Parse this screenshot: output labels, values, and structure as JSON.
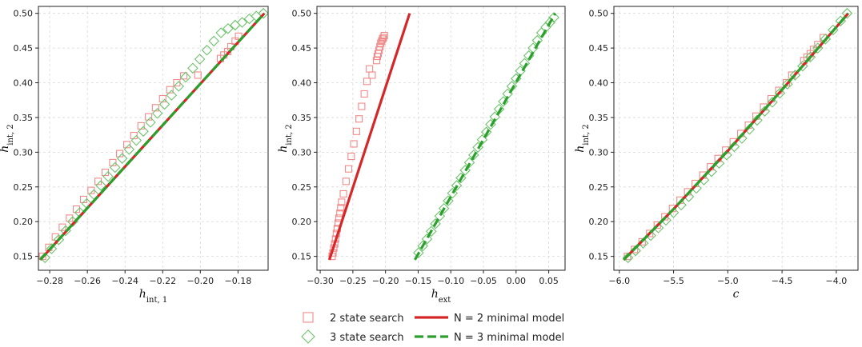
{
  "colors": {
    "red": "#d62728",
    "green": "#2ca02c",
    "grid": "#d9d9d9",
    "marker_red": "#f08a8a",
    "marker_green": "#6cc36c"
  },
  "legend": {
    "items": [
      {
        "label": "2 state search",
        "kind": "square-marker",
        "color": "#f08a8a"
      },
      {
        "label": "3 state search",
        "kind": "diamond-marker",
        "color": "#6cc36c"
      },
      {
        "label": "N = 2 minimal model",
        "kind": "solid-line",
        "color": "#d62728"
      },
      {
        "label": "N = 3 minimal model",
        "kind": "dashed-line",
        "color": "#2ca02c"
      }
    ]
  },
  "chart_data": [
    {
      "type": "scatter",
      "xlabel": "h_int,1",
      "xlabel_main": "h",
      "xlabel_sub": "int, 1",
      "ylabel": "h_int,2",
      "ylabel_main": "h",
      "ylabel_sub": "int, 2",
      "xlim": [
        -0.286,
        -0.164
      ],
      "ylim": [
        0.13,
        0.51
      ],
      "xticks": [
        -0.28,
        -0.26,
        -0.24,
        -0.22,
        -0.2,
        -0.18
      ],
      "xtick_labels": [
        "−0.28",
        "−0.26",
        "−0.24",
        "−0.22",
        "−0.20",
        "−0.18"
      ],
      "yticks": [
        0.15,
        0.2,
        0.25,
        0.3,
        0.35,
        0.4,
        0.45,
        0.5
      ],
      "ytick_labels": [
        "0.15",
        "0.20",
        "0.25",
        "0.30",
        "0.35",
        "0.40",
        "0.45",
        "0.50"
      ],
      "grid": true,
      "series": [
        {
          "name": "2 state search",
          "kind": "scatter",
          "marker": "square",
          "x": [
            -0.2838,
            -0.2805,
            -0.277,
            -0.2733,
            -0.2695,
            -0.2658,
            -0.262,
            -0.258,
            -0.2543,
            -0.2505,
            -0.2465,
            -0.2428,
            -0.239,
            -0.2353,
            -0.2315,
            -0.2275,
            -0.2238,
            -0.22,
            -0.2162,
            -0.2125,
            -0.2088,
            -0.2013,
            -0.1893,
            -0.1875,
            -0.1855,
            -0.1838,
            -0.1815,
            -0.1797
          ],
          "y": [
            0.15,
            0.163,
            0.178,
            0.192,
            0.205,
            0.218,
            0.232,
            0.245,
            0.258,
            0.271,
            0.285,
            0.298,
            0.311,
            0.324,
            0.338,
            0.351,
            0.364,
            0.377,
            0.39,
            0.4,
            0.41,
            0.411,
            0.435,
            0.44,
            0.445,
            0.452,
            0.46,
            0.467
          ]
        },
        {
          "name": "3 state search",
          "kind": "scatter",
          "marker": "diamond",
          "x": [
            -0.2825,
            -0.279,
            -0.2752,
            -0.2715,
            -0.2678,
            -0.264,
            -0.2603,
            -0.2565,
            -0.2528,
            -0.249,
            -0.2453,
            -0.2415,
            -0.2378,
            -0.234,
            -0.2303,
            -0.2265,
            -0.2228,
            -0.219,
            -0.2153,
            -0.2115,
            -0.2078,
            -0.204,
            -0.2003,
            -0.1965,
            -0.1928,
            -0.189,
            -0.1853,
            -0.1815,
            -0.1778,
            -0.174,
            -0.1703,
            -0.1665
          ],
          "y": [
            0.148,
            0.161,
            0.174,
            0.187,
            0.2,
            0.213,
            0.226,
            0.239,
            0.252,
            0.265,
            0.278,
            0.291,
            0.304,
            0.317,
            0.33,
            0.343,
            0.356,
            0.369,
            0.382,
            0.395,
            0.408,
            0.421,
            0.434,
            0.447,
            0.46,
            0.472,
            0.478,
            0.483,
            0.487,
            0.492,
            0.496,
            0.5
          ]
        },
        {
          "name": "N = 2 minimal model",
          "kind": "line",
          "style": "solid",
          "x": [
            -0.285,
            -0.166
          ],
          "y": [
            0.145,
            0.5
          ]
        },
        {
          "name": "N = 3 minimal model",
          "kind": "line",
          "style": "dashed",
          "x": [
            -0.285,
            -0.166
          ],
          "y": [
            0.145,
            0.5
          ]
        }
      ]
    },
    {
      "type": "scatter",
      "xlabel": "h_ext",
      "xlabel_main": "h",
      "xlabel_sub": "ext",
      "ylabel": "h_int,2",
      "ylabel_main": "h",
      "ylabel_sub": "int, 2",
      "xlim": [
        -0.305,
        0.075
      ],
      "ylim": [
        0.13,
        0.51
      ],
      "xticks": [
        -0.3,
        -0.25,
        -0.2,
        -0.15,
        -0.1,
        -0.05,
        0.0,
        0.05
      ],
      "xtick_labels": [
        "−0.30",
        "−0.25",
        "−0.20",
        "−0.15",
        "−0.10",
        "−0.05",
        "0.00",
        "0.05"
      ],
      "yticks": [
        0.15,
        0.2,
        0.25,
        0.3,
        0.35,
        0.4,
        0.45,
        0.5
      ],
      "ytick_labels": [
        "0.15",
        "0.20",
        "0.25",
        "0.30",
        "0.35",
        "0.40",
        "0.45",
        "0.50"
      ],
      "grid": true,
      "series": [
        {
          "name": "2 state search",
          "kind": "scatter",
          "marker": "square",
          "x": [
            -0.2818,
            -0.2805,
            -0.2792,
            -0.2778,
            -0.2765,
            -0.2752,
            -0.2738,
            -0.2725,
            -0.2712,
            -0.2698,
            -0.2685,
            -0.2672,
            -0.2645,
            -0.2605,
            -0.2565,
            -0.2525,
            -0.2485,
            -0.2445,
            -0.2405,
            -0.2365,
            -0.2325,
            -0.2285,
            -0.2245,
            -0.2205,
            -0.2138,
            -0.2125,
            -0.2112,
            -0.2098,
            -0.2085,
            -0.2072,
            -0.2058,
            -0.2045,
            -0.2032,
            -0.2018
          ],
          "y": [
            0.15,
            0.155,
            0.162,
            0.168,
            0.175,
            0.183,
            0.19,
            0.198,
            0.205,
            0.212,
            0.22,
            0.228,
            0.24,
            0.258,
            0.276,
            0.294,
            0.312,
            0.33,
            0.348,
            0.366,
            0.384,
            0.402,
            0.42,
            0.411,
            0.432,
            0.438,
            0.442,
            0.447,
            0.452,
            0.457,
            0.46,
            0.463,
            0.465,
            0.468
          ]
        },
        {
          "name": "3 state search",
          "kind": "scatter",
          "marker": "diamond",
          "x": [
            -0.1495,
            -0.143,
            -0.1365,
            -0.13,
            -0.1235,
            -0.117,
            -0.1105,
            -0.104,
            -0.0975,
            -0.091,
            -0.0845,
            -0.078,
            -0.0715,
            -0.065,
            -0.0585,
            -0.052,
            -0.0455,
            -0.039,
            -0.0325,
            -0.026,
            -0.0195,
            -0.013,
            -0.0065,
            0.0,
            0.0065,
            0.013,
            0.0195,
            0.026,
            0.0325,
            0.039,
            0.0455,
            0.052,
            0.058
          ],
          "y": [
            0.155,
            0.165,
            0.175,
            0.186,
            0.197,
            0.208,
            0.219,
            0.23,
            0.241,
            0.252,
            0.263,
            0.274,
            0.285,
            0.296,
            0.307,
            0.318,
            0.329,
            0.34,
            0.351,
            0.362,
            0.373,
            0.384,
            0.395,
            0.406,
            0.417,
            0.428,
            0.439,
            0.45,
            0.461,
            0.472,
            0.48,
            0.487,
            0.494
          ]
        },
        {
          "name": "N = 2 minimal model",
          "kind": "line",
          "style": "solid",
          "x": [
            -0.286,
            -0.163
          ],
          "y": [
            0.145,
            0.5
          ]
        },
        {
          "name": "N = 3 minimal model",
          "kind": "line",
          "style": "dashed",
          "x": [
            -0.155,
            0.06
          ],
          "y": [
            0.145,
            0.5
          ]
        }
      ]
    },
    {
      "type": "scatter",
      "xlabel": "c",
      "xlabel_main": "c",
      "xlabel_sub": "",
      "ylabel": "h_int,2",
      "ylabel_main": "h",
      "ylabel_sub": "int, 2",
      "xlim": [
        -6.05,
        -3.8
      ],
      "ylim": [
        0.13,
        0.51
      ],
      "xticks": [
        -6.0,
        -5.5,
        -5.0,
        -4.5,
        -4.0
      ],
      "xtick_labels": [
        "−6.0",
        "−5.5",
        "−5.0",
        "−4.5",
        "−4.0"
      ],
      "yticks": [
        0.15,
        0.2,
        0.25,
        0.3,
        0.35,
        0.4,
        0.45,
        0.5
      ],
      "ytick_labels": [
        "0.15",
        "0.20",
        "0.25",
        "0.30",
        "0.35",
        "0.40",
        "0.45",
        "0.50"
      ],
      "grid": true,
      "series": [
        {
          "name": "2 state search",
          "kind": "scatter",
          "marker": "square",
          "x": [
            -5.925,
            -5.86,
            -5.79,
            -5.72,
            -5.65,
            -5.58,
            -5.51,
            -5.44,
            -5.37,
            -5.3,
            -5.23,
            -5.16,
            -5.09,
            -5.02,
            -4.95,
            -4.88,
            -4.81,
            -4.74,
            -4.67,
            -4.6,
            -4.53,
            -4.46,
            -4.41,
            -4.3,
            -4.27,
            -4.24,
            -4.21,
            -4.17,
            -4.12
          ],
          "y": [
            0.15,
            0.16,
            0.171,
            0.183,
            0.195,
            0.207,
            0.219,
            0.231,
            0.243,
            0.255,
            0.267,
            0.279,
            0.291,
            0.303,
            0.315,
            0.327,
            0.339,
            0.352,
            0.365,
            0.377,
            0.389,
            0.4,
            0.411,
            0.432,
            0.437,
            0.442,
            0.448,
            0.455,
            0.465
          ]
        },
        {
          "name": "3 state search",
          "kind": "scatter",
          "marker": "diamond",
          "x": [
            -5.92,
            -5.85,
            -5.78,
            -5.71,
            -5.64,
            -5.57,
            -5.5,
            -5.43,
            -5.36,
            -5.29,
            -5.22,
            -5.15,
            -5.08,
            -5.01,
            -4.94,
            -4.87,
            -4.8,
            -4.73,
            -4.66,
            -4.59,
            -4.52,
            -4.45,
            -4.38,
            -4.31,
            -4.24,
            -4.17,
            -4.1,
            -4.03,
            -3.96,
            -3.9
          ],
          "y": [
            0.148,
            0.158,
            0.169,
            0.18,
            0.191,
            0.202,
            0.213,
            0.224,
            0.236,
            0.248,
            0.26,
            0.272,
            0.284,
            0.296,
            0.308,
            0.32,
            0.333,
            0.346,
            0.359,
            0.372,
            0.385,
            0.398,
            0.411,
            0.424,
            0.437,
            0.45,
            0.463,
            0.476,
            0.489,
            0.5
          ]
        },
        {
          "name": "N = 2 minimal model",
          "kind": "line",
          "style": "solid",
          "x": [
            -5.96,
            -5.5,
            -5.0,
            -4.5,
            -3.89
          ],
          "y": [
            0.145,
            0.218,
            0.302,
            0.39,
            0.5
          ]
        },
        {
          "name": "N = 3 minimal model",
          "kind": "line",
          "style": "dashed",
          "x": [
            -5.96,
            -5.5,
            -5.0,
            -4.5,
            -3.89
          ],
          "y": [
            0.145,
            0.218,
            0.302,
            0.39,
            0.5
          ]
        }
      ]
    }
  ]
}
